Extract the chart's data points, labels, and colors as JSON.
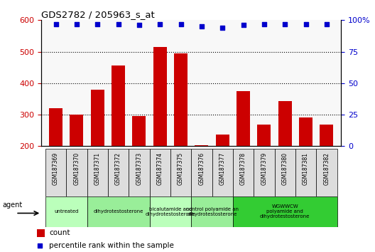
{
  "title": "GDS2782 / 205963_s_at",
  "samples": [
    "GSM187369",
    "GSM187370",
    "GSM187371",
    "GSM187372",
    "GSM187373",
    "GSM187374",
    "GSM187375",
    "GSM187376",
    "GSM187377",
    "GSM187378",
    "GSM187379",
    "GSM187380",
    "GSM187381",
    "GSM187382"
  ],
  "counts": [
    320,
    300,
    380,
    455,
    295,
    515,
    495,
    202,
    237,
    375,
    268,
    342,
    292,
    268
  ],
  "percentiles": [
    97,
    97,
    97,
    97,
    96,
    97,
    97,
    95,
    94,
    96,
    97,
    97,
    97,
    97
  ],
  "bar_color": "#cc0000",
  "dot_color": "#0000cc",
  "ylim_left": [
    200,
    600
  ],
  "ylim_right": [
    0,
    100
  ],
  "yticks_left": [
    200,
    300,
    400,
    500,
    600
  ],
  "yticks_right": [
    0,
    25,
    50,
    75,
    100
  ],
  "yright_labels": [
    "0",
    "25",
    "50",
    "75",
    "100%"
  ],
  "groups": [
    {
      "label": "untreated",
      "indices": [
        0,
        1
      ],
      "color": "#bbffbb"
    },
    {
      "label": "dihydrotestosterone",
      "indices": [
        2,
        3,
        4
      ],
      "color": "#99ee99"
    },
    {
      "label": "bicalutamide and\ndihydrotestosterone",
      "indices": [
        5,
        6
      ],
      "color": "#bbffbb"
    },
    {
      "label": "control polyamide an\ndihydrotestosterone",
      "indices": [
        7,
        8
      ],
      "color": "#99ee99"
    },
    {
      "label": "WGWWCW\npolyamide and\ndihydrotestosterone",
      "indices": [
        9,
        10,
        11,
        12,
        13
      ],
      "color": "#33cc33"
    }
  ],
  "agent_label": "agent",
  "legend_count_label": "count",
  "legend_pct_label": "percentile rank within the sample",
  "tick_label_color_left": "#cc0000",
  "tick_label_color_right": "#0000cc",
  "title_color": "#000000",
  "sample_cell_color": "#dddddd",
  "plot_bg_color": "#f8f8f8"
}
